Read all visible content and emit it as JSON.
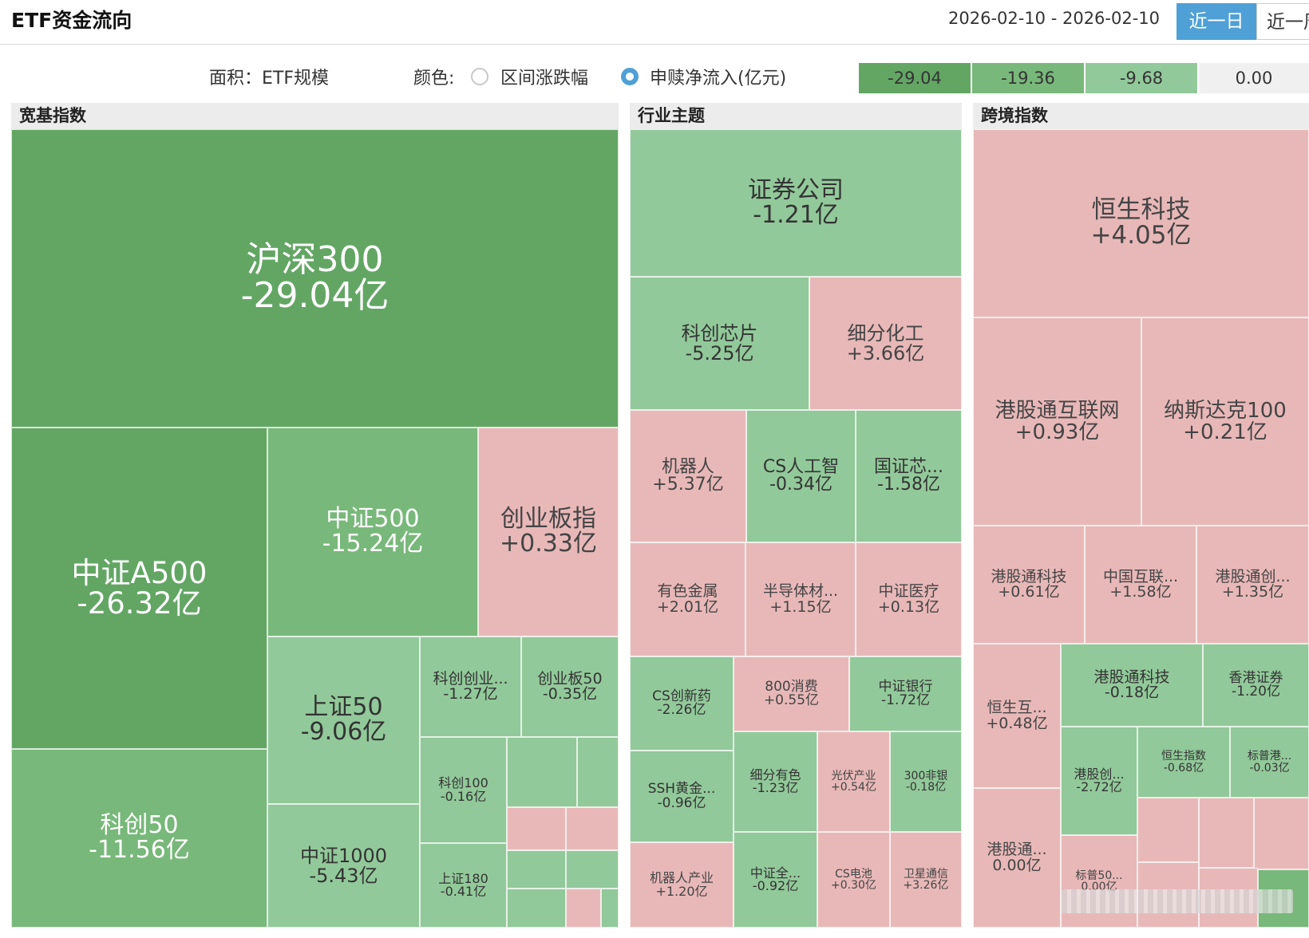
{
  "header": {
    "title": "ETF资金流向",
    "date_range": "2026-02-10 - 2026-02-10",
    "range_active": "近一日",
    "range_next": "近一周"
  },
  "controls": {
    "area_label": "面积：ETF规模",
    "color_label": "颜色:",
    "option_change": "区间涨跌幅",
    "option_flow": "申赎净流入(亿元)",
    "selected": "申赎净流入(亿元)"
  },
  "legend": [
    "-29.04",
    "-19.36",
    "-9.68",
    "0.00"
  ],
  "colors": {
    "strong_outflow": "#63a664",
    "mid_outflow": "#78b87a",
    "light_outflow": "#92c99a",
    "inflow": "#e8b8b8",
    "active_button": "#4fa0d6"
  },
  "sections": [
    {
      "name": "宽基指数",
      "tiles": [
        {
          "name": "沪深300",
          "value": "-29.04亿"
        },
        {
          "name": "中证A500",
          "value": "-26.32亿"
        },
        {
          "name": "科创50",
          "value": "-11.56亿"
        },
        {
          "name": "中证500",
          "value": "-15.24亿"
        },
        {
          "name": "创业板指",
          "value": "+0.33亿"
        },
        {
          "name": "上证50",
          "value": "-9.06亿"
        },
        {
          "name": "中证1000",
          "value": "-5.43亿"
        },
        {
          "name": "科创创业...",
          "value": "-1.27亿"
        },
        {
          "name": "创业板50",
          "value": "-0.35亿"
        },
        {
          "name": "科创100",
          "value": "-0.16亿"
        },
        {
          "name": "上证180",
          "value": "-0.41亿"
        }
      ]
    },
    {
      "name": "行业主题",
      "tiles": [
        {
          "name": "证券公司",
          "value": "-1.21亿"
        },
        {
          "name": "科创芯片",
          "value": "-5.25亿"
        },
        {
          "name": "细分化工",
          "value": "+3.66亿"
        },
        {
          "name": "机器人",
          "value": "+5.37亿"
        },
        {
          "name": "CS人工智",
          "value": "-0.34亿"
        },
        {
          "name": "国证芯...",
          "value": "-1.58亿"
        },
        {
          "name": "有色金属",
          "value": "+2.01亿"
        },
        {
          "name": "半导体材...",
          "value": "+1.15亿"
        },
        {
          "name": "中证医疗",
          "value": "+0.13亿"
        },
        {
          "name": "CS创新药",
          "value": "-2.26亿"
        },
        {
          "name": "800消费",
          "value": "+0.55亿"
        },
        {
          "name": "中证银行",
          "value": "-1.72亿"
        },
        {
          "name": "SSH黄金...",
          "value": "-0.96亿"
        },
        {
          "name": "细分有色",
          "value": "-1.23亿"
        },
        {
          "name": "光伏产业",
          "value": "+0.54亿"
        },
        {
          "name": "300非银",
          "value": "-0.18亿"
        },
        {
          "name": "机器人产业",
          "value": "+1.20亿"
        },
        {
          "name": "中证全...",
          "value": "-0.92亿"
        },
        {
          "name": "CS电池",
          "value": "+0.30亿"
        },
        {
          "name": "卫星通信",
          "value": "+3.26亿"
        }
      ]
    },
    {
      "name": "跨境指数",
      "tiles": [
        {
          "name": "恒生科技",
          "value": "+4.05亿"
        },
        {
          "name": "港股通互联网",
          "value": "+0.93亿"
        },
        {
          "name": "纳斯达克100",
          "value": "+0.21亿"
        },
        {
          "name": "港股通科技",
          "value": "+0.61亿"
        },
        {
          "name": "中国互联...",
          "value": "+1.58亿"
        },
        {
          "name": "港股通创...",
          "value": "+1.35亿"
        },
        {
          "name": "恒生互...",
          "value": "+0.48亿"
        },
        {
          "name": "港股通科技",
          "value": "-0.18亿"
        },
        {
          "name": "香港证券",
          "value": "-1.20亿"
        },
        {
          "name": "港股创...",
          "value": "-2.72亿"
        },
        {
          "name": "恒生指数",
          "value": "-0.68亿"
        },
        {
          "name": "标普港...",
          "value": "-0.03亿"
        },
        {
          "name": "港股通...",
          "value": "0.00亿"
        },
        {
          "name": "标普50...",
          "value": "0.00亿"
        }
      ]
    }
  ]
}
